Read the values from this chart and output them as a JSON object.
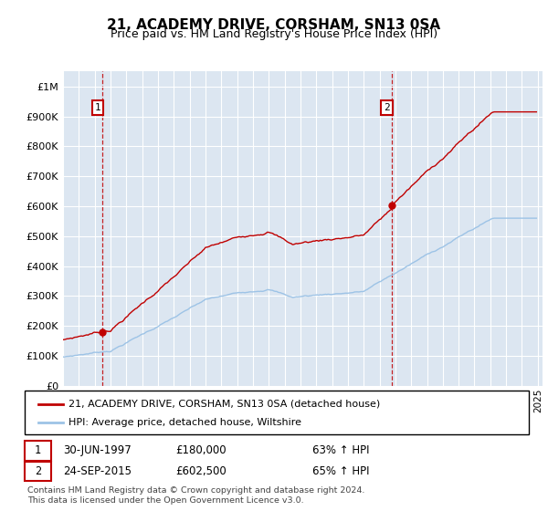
{
  "title": "21, ACADEMY DRIVE, CORSHAM, SN13 0SA",
  "subtitle": "Price paid vs. HM Land Registry's House Price Index (HPI)",
  "red_label": "21, ACADEMY DRIVE, CORSHAM, SN13 0SA (detached house)",
  "blue_label": "HPI: Average price, detached house, Wiltshire",
  "sale1_date": "30-JUN-1997",
  "sale1_price": 180000,
  "sale1_pct": "63% ↑ HPI",
  "sale2_date": "24-SEP-2015",
  "sale2_price": 602500,
  "sale2_pct": "65% ↑ HPI",
  "footnote": "Contains HM Land Registry data © Crown copyright and database right 2024.\nThis data is licensed under the Open Government Licence v3.0.",
  "plot_bg_color": "#dce6f1",
  "ylim": [
    0,
    1050000
  ],
  "xlim_start": 1995.0,
  "xlim_end": 2025.3,
  "sale1_year": 1997.5,
  "sale2_year": 2015.75,
  "red_color": "#c00000",
  "blue_color": "#9dc3e6",
  "grid_color": "white",
  "title_fontsize": 11,
  "subtitle_fontsize": 9
}
